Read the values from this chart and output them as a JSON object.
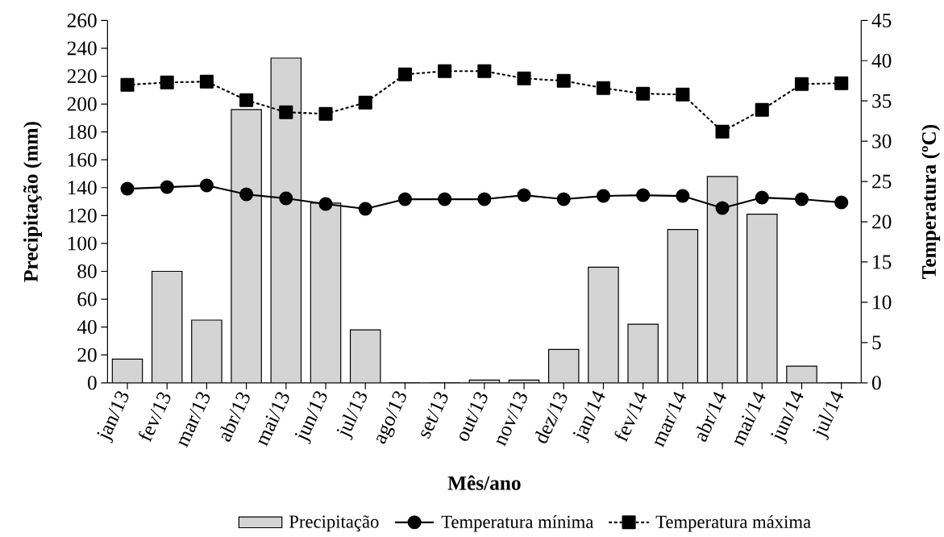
{
  "chart_data": {
    "type": "bar",
    "xlabel": "Mês/ano",
    "ylabel": "Precipitação (mm)",
    "y2label": "Temperatura (ºC)",
    "categories": [
      "jan/13",
      "fev/13",
      "mar/13",
      "abr/13",
      "mai/13",
      "jun/13",
      "jul/13",
      "ago/13",
      "set/13",
      "out/13",
      "nov/13",
      "dez/13",
      "jan/14",
      "fev/14",
      "mar/14",
      "abr/14",
      "mai/14",
      "jun/14",
      "jul/14"
    ],
    "series": [
      {
        "name": "Precipitação",
        "color": "#d4d4d4",
        "values": [
          17,
          80,
          45,
          196,
          233,
          129,
          38,
          0,
          0,
          2,
          2,
          24,
          83,
          42,
          110,
          148,
          121,
          12,
          0
        ]
      },
      {
        "name": "Temperatura mínima",
        "type": "line",
        "axis": "y2",
        "color": "#000000",
        "marker": "circle",
        "line_style": "solid",
        "values": [
          24.1,
          24.3,
          24.5,
          23.4,
          22.9,
          22.2,
          21.6,
          22.8,
          22.8,
          22.8,
          23.3,
          22.8,
          23.2,
          23.3,
          23.2,
          21.7,
          23.0,
          22.8,
          22.4
        ]
      },
      {
        "name": "Temperatura máxima",
        "type": "line",
        "axis": "y2",
        "color": "#000000",
        "marker": "square",
        "line_style": "dotted",
        "values": [
          37.0,
          37.3,
          37.4,
          35.1,
          33.6,
          33.4,
          34.8,
          38.3,
          38.7,
          38.7,
          37.8,
          37.5,
          36.6,
          35.9,
          35.8,
          31.2,
          33.9,
          37.1,
          37.2
        ]
      }
    ],
    "ylim": [
      0,
      260
    ],
    "yticks": [
      0,
      20,
      40,
      60,
      80,
      100,
      120,
      140,
      160,
      180,
      200,
      220,
      240,
      260
    ],
    "y2lim": [
      0,
      45
    ],
    "y2ticks": [
      0,
      5,
      10,
      15,
      20,
      25,
      30,
      35,
      40,
      45
    ],
    "legend": "bottom"
  }
}
